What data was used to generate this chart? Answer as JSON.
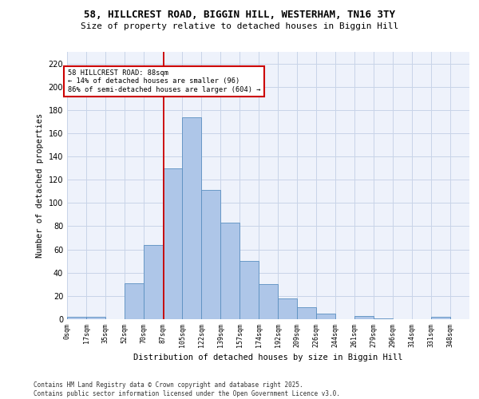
{
  "title_line1": "58, HILLCREST ROAD, BIGGIN HILL, WESTERHAM, TN16 3TY",
  "title_line2": "Size of property relative to detached houses in Biggin Hill",
  "xlabel": "Distribution of detached houses by size in Biggin Hill",
  "ylabel": "Number of detached properties",
  "bar_labels": [
    "0sqm",
    "17sqm",
    "35sqm",
    "52sqm",
    "70sqm",
    "87sqm",
    "105sqm",
    "122sqm",
    "139sqm",
    "157sqm",
    "174sqm",
    "192sqm",
    "209sqm",
    "226sqm",
    "244sqm",
    "261sqm",
    "279sqm",
    "296sqm",
    "314sqm",
    "331sqm",
    "348sqm"
  ],
  "bar_heights": [
    2,
    2,
    0,
    31,
    64,
    130,
    174,
    111,
    83,
    50,
    30,
    18,
    10,
    5,
    0,
    3,
    1,
    0,
    0,
    2,
    0
  ],
  "bar_color": "#aec6e8",
  "bar_edgecolor": "#5a8fc0",
  "ylim": [
    0,
    230
  ],
  "yticks": [
    0,
    20,
    40,
    60,
    80,
    100,
    120,
    140,
    160,
    180,
    200,
    220
  ],
  "annotation_text": "58 HILLCREST ROAD: 88sqm\n← 14% of detached houses are smaller (96)\n86% of semi-detached houses are larger (604) →",
  "annotation_box_color": "#cc0000",
  "vline_color": "#cc0000",
  "background_color": "#eef2fb",
  "grid_color": "#c8d4e8",
  "footer_text": "Contains HM Land Registry data © Crown copyright and database right 2025.\nContains public sector information licensed under the Open Government Licence v3.0."
}
